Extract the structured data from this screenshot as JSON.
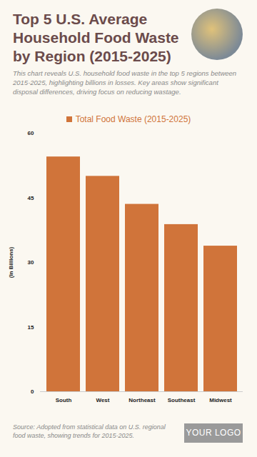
{
  "chart_data": {
    "type": "bar",
    "title": "Top 5 U.S. Average Household Food Waste by Region (2015-2025)",
    "subtitle": "This chart reveals U.S. household food waste in the top 5 regions between 2015-2025, highlighting billions in losses. Key areas show significant disposal differences, driving focus on reducing wastage.",
    "y_label": "(In Billions)",
    "categories": [
      "South",
      "West",
      "Northeast",
      "Southeast",
      "Midwest"
    ],
    "series": [
      {
        "name": "Total Food Waste (2015-2025)",
        "color": "#d0743a",
        "values": [
          54.5,
          50,
          43.5,
          38.8,
          33.8
        ]
      }
    ],
    "ylim": [
      0,
      60
    ],
    "yticks": [
      0,
      15,
      30,
      45,
      60
    ],
    "grid": false,
    "legend": "top",
    "source": "Source: Adopted from statistical data on U.S. regional food waste, showing trends for 2015-2025.",
    "logo": "YOUR LOGO"
  }
}
